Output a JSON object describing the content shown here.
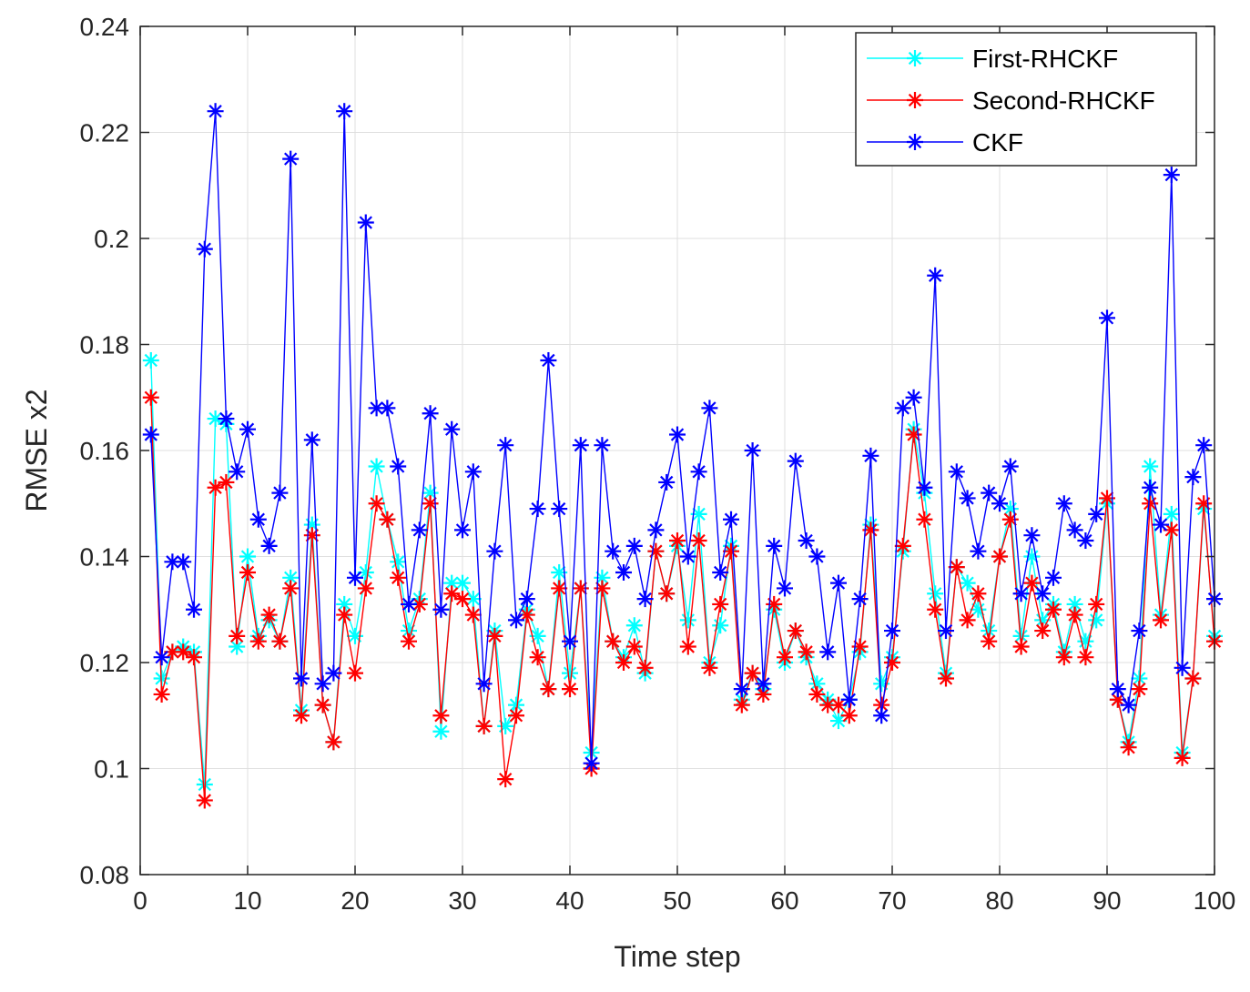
{
  "chart_data": {
    "type": "line",
    "title": "",
    "xlabel": "Time step",
    "ylabel": "RMSE x2",
    "xlim": [
      0,
      100
    ],
    "ylim": [
      0.08,
      0.24
    ],
    "xticks": [
      0,
      10,
      20,
      30,
      40,
      50,
      60,
      70,
      80,
      90,
      100
    ],
    "xtick_labels": [
      "0",
      "10",
      "20",
      "30",
      "40",
      "50",
      "60",
      "70",
      "80",
      "90",
      "100"
    ],
    "yticks": [
      0.08,
      0.1,
      0.12,
      0.14,
      0.16,
      0.18,
      0.2,
      0.22,
      0.24
    ],
    "ytick_labels": [
      "0.08",
      "0.1",
      "0.12",
      "0.14",
      "0.16",
      "0.18",
      "0.2",
      "0.22",
      "0.24"
    ],
    "grid": true,
    "legend_position": "top-right",
    "marker": "asterisk",
    "x": [
      1,
      2,
      3,
      4,
      5,
      6,
      7,
      8,
      9,
      10,
      11,
      12,
      13,
      14,
      15,
      16,
      17,
      18,
      19,
      20,
      21,
      22,
      23,
      24,
      25,
      26,
      27,
      28,
      29,
      30,
      31,
      32,
      33,
      34,
      35,
      36,
      37,
      38,
      39,
      40,
      41,
      42,
      43,
      44,
      45,
      46,
      47,
      48,
      49,
      50,
      51,
      52,
      53,
      54,
      55,
      56,
      57,
      58,
      59,
      60,
      61,
      62,
      63,
      64,
      65,
      66,
      67,
      68,
      69,
      70,
      71,
      72,
      73,
      74,
      75,
      76,
      77,
      78,
      79,
      80,
      81,
      82,
      83,
      84,
      85,
      86,
      87,
      88,
      89,
      90,
      91,
      92,
      93,
      94,
      95,
      96,
      97,
      98,
      99,
      100
    ],
    "series": [
      {
        "name": "First-RHCKF",
        "color": "#00ffff",
        "values": [
          0.177,
          0.117,
          0.122,
          0.123,
          0.122,
          0.097,
          0.166,
          0.165,
          0.123,
          0.14,
          0.125,
          0.128,
          0.124,
          0.136,
          0.111,
          0.146,
          0.112,
          0.105,
          0.131,
          0.125,
          0.137,
          0.157,
          0.147,
          0.139,
          0.126,
          0.132,
          0.152,
          0.107,
          0.135,
          0.135,
          0.132,
          0.108,
          0.126,
          0.108,
          0.112,
          0.13,
          0.125,
          0.115,
          0.137,
          0.118,
          0.134,
          0.103,
          0.136,
          0.124,
          0.121,
          0.127,
          0.118,
          0.141,
          0.133,
          0.142,
          0.128,
          0.148,
          0.12,
          0.127,
          0.142,
          0.113,
          0.118,
          0.115,
          0.13,
          0.12,
          0.126,
          0.121,
          0.116,
          0.113,
          0.109,
          0.113,
          0.122,
          0.146,
          0.116,
          0.121,
          0.141,
          0.164,
          0.152,
          0.133,
          0.118,
          0.138,
          0.135,
          0.13,
          0.126,
          0.14,
          0.149,
          0.125,
          0.14,
          0.128,
          0.131,
          0.122,
          0.131,
          0.124,
          0.128,
          0.15,
          0.113,
          0.105,
          0.117,
          0.157,
          0.129,
          0.148,
          0.103,
          0.117,
          0.149,
          0.125
        ]
      },
      {
        "name": "Second-RHCKF",
        "color": "#ff0000",
        "values": [
          0.17,
          0.114,
          0.122,
          0.122,
          0.121,
          0.094,
          0.153,
          0.154,
          0.125,
          0.137,
          0.124,
          0.129,
          0.124,
          0.134,
          0.11,
          0.144,
          0.112,
          0.105,
          0.129,
          0.118,
          0.134,
          0.15,
          0.147,
          0.136,
          0.124,
          0.131,
          0.15,
          0.11,
          0.133,
          0.132,
          0.129,
          0.108,
          0.125,
          0.098,
          0.11,
          0.129,
          0.121,
          0.115,
          0.134,
          0.115,
          0.134,
          0.1,
          0.134,
          0.124,
          0.12,
          0.123,
          0.119,
          0.141,
          0.133,
          0.143,
          0.123,
          0.143,
          0.119,
          0.131,
          0.141,
          0.112,
          0.118,
          0.114,
          0.131,
          0.121,
          0.126,
          0.122,
          0.114,
          0.112,
          0.112,
          0.11,
          0.123,
          0.145,
          0.112,
          0.12,
          0.142,
          0.163,
          0.147,
          0.13,
          0.117,
          0.138,
          0.128,
          0.133,
          0.124,
          0.14,
          0.147,
          0.123,
          0.135,
          0.126,
          0.13,
          0.121,
          0.129,
          0.121,
          0.131,
          0.151,
          0.113,
          0.104,
          0.115,
          0.15,
          0.128,
          0.145,
          0.102,
          0.117,
          0.15,
          0.124
        ]
      },
      {
        "name": "CKF",
        "color": "#0000ff",
        "values": [
          0.163,
          0.121,
          0.139,
          0.139,
          0.13,
          0.198,
          0.224,
          0.166,
          0.156,
          0.164,
          0.147,
          0.142,
          0.152,
          0.215,
          0.117,
          0.162,
          0.116,
          0.118,
          0.224,
          0.136,
          0.203,
          0.168,
          0.168,
          0.157,
          0.131,
          0.145,
          0.167,
          0.13,
          0.164,
          0.145,
          0.156,
          0.116,
          0.141,
          0.161,
          0.128,
          0.132,
          0.149,
          0.177,
          0.149,
          0.124,
          0.161,
          0.101,
          0.161,
          0.141,
          0.137,
          0.142,
          0.132,
          0.145,
          0.154,
          0.163,
          0.14,
          0.156,
          0.168,
          0.137,
          0.147,
          0.115,
          0.16,
          0.116,
          0.142,
          0.134,
          0.158,
          0.143,
          0.14,
          0.122,
          0.135,
          0.113,
          0.132,
          0.159,
          0.11,
          0.126,
          0.168,
          0.17,
          0.153,
          0.193,
          0.126,
          0.156,
          0.151,
          0.141,
          0.152,
          0.15,
          0.157,
          0.133,
          0.144,
          0.133,
          0.136,
          0.15,
          0.145,
          0.143,
          0.148,
          0.185,
          0.115,
          0.112,
          0.126,
          0.153,
          0.146,
          0.212,
          0.119,
          0.155,
          0.161,
          0.132
        ]
      }
    ]
  }
}
